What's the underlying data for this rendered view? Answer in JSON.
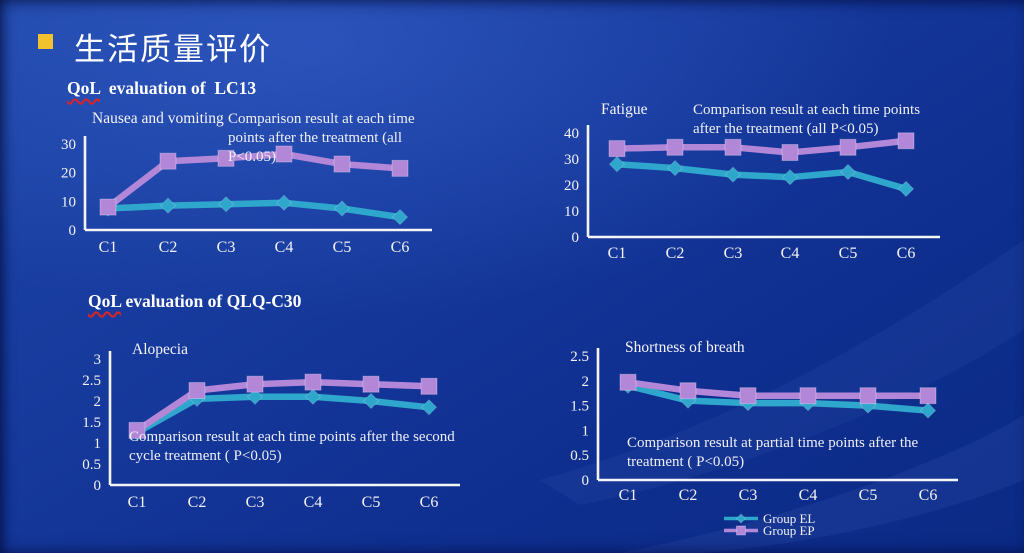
{
  "slide": {
    "title": "生活质量评价",
    "bullet_color": "#f2c12e",
    "background_color": "#14379b"
  },
  "sections": {
    "lc13": {
      "highlight": "QoL",
      "rest": "  evaluation of  LC13"
    },
    "qlq": {
      "highlight": "QoL",
      "rest": " evaluation of QLQ-C30"
    }
  },
  "legend": {
    "items": [
      {
        "name": "Group EL",
        "color": "#2fa6cb",
        "marker": "diamond"
      },
      {
        "name": "Group EP",
        "color": "#b287d8",
        "marker": "square"
      }
    ]
  },
  "chart_data": [
    {
      "type": "line",
      "title": "Nausea and vomiting",
      "note": "Comparison result at each time points after the treatment (all P<0.05)",
      "note_lines": [
        "Comparison result at each time",
        "points after the treatment (all",
        "P<0.05)"
      ],
      "categories": [
        "C1",
        "C2",
        "C3",
        "C4",
        "C5",
        "C6"
      ],
      "ylim": [
        0,
        30
      ],
      "yticks": [
        0,
        10,
        20,
        30
      ],
      "grid": false,
      "series": [
        {
          "name": "Group EL",
          "color": "#2fa6cb",
          "marker": "diamond",
          "values": [
            7.5,
            8.5,
            9,
            9.5,
            7.5,
            4.5
          ]
        },
        {
          "name": "Group EP",
          "color": "#b287d8",
          "marker": "square",
          "values": [
            8,
            24,
            25,
            26.5,
            23,
            21.5
          ]
        }
      ]
    },
    {
      "type": "line",
      "title": "Fatigue",
      "note": "Comparison result at each time points after the treatment (all P<0.05)",
      "note_lines": [
        "Comparison result at each time points",
        "after the treatment (all P<0.05)"
      ],
      "categories": [
        "C1",
        "C2",
        "C3",
        "C4",
        "C5",
        "C6"
      ],
      "ylim": [
        0,
        40
      ],
      "yticks": [
        0,
        10,
        20,
        30,
        40
      ],
      "grid": false,
      "series": [
        {
          "name": "Group EL",
          "color": "#2fa6cb",
          "marker": "diamond",
          "values": [
            28,
            26.5,
            24,
            23,
            25,
            18.5
          ]
        },
        {
          "name": "Group EP",
          "color": "#b287d8",
          "marker": "square",
          "values": [
            34,
            34.5,
            34.5,
            32.5,
            34.5,
            37
          ]
        }
      ]
    },
    {
      "type": "line",
      "title": "Alopecia",
      "note": "Comparison result at each time points after the second cycle treatment ( P<0.05)",
      "note_lines": [
        "Comparison result at each time points after the second",
        "cycle treatment ( P<0.05)"
      ],
      "categories": [
        "C1",
        "C2",
        "C3",
        "C4",
        "C5",
        "C6"
      ],
      "ylim": [
        0,
        3
      ],
      "yticks": [
        0,
        0.5,
        1,
        1.5,
        2,
        2.5,
        3
      ],
      "grid": false,
      "series": [
        {
          "name": "Group EL",
          "color": "#2fa6cb",
          "marker": "diamond",
          "values": [
            1.25,
            2.05,
            2.1,
            2.1,
            2.0,
            1.85
          ]
        },
        {
          "name": "Group EP",
          "color": "#b287d8",
          "marker": "square",
          "values": [
            1.3,
            2.25,
            2.4,
            2.45,
            2.4,
            2.35
          ]
        }
      ]
    },
    {
      "type": "line",
      "title": "Shortness of breath",
      "note": "Comparison result at partial time points after the treatment ( P<0.05)",
      "note_lines": [
        "Comparison result at partial time points after the",
        "treatment ( P<0.05)"
      ],
      "categories": [
        "C1",
        "C2",
        "C3",
        "C4",
        "C5",
        "C6"
      ],
      "ylim": [
        0,
        2.5
      ],
      "yticks": [
        0,
        0.5,
        1,
        1.5,
        2,
        2.5
      ],
      "grid": false,
      "series": [
        {
          "name": "Group EL",
          "color": "#2fa6cb",
          "marker": "diamond",
          "values": [
            1.9,
            1.6,
            1.55,
            1.55,
            1.5,
            1.4
          ]
        },
        {
          "name": "Group EP",
          "color": "#b287d8",
          "marker": "square",
          "values": [
            1.97,
            1.8,
            1.7,
            1.7,
            1.7,
            1.7
          ]
        }
      ]
    }
  ]
}
